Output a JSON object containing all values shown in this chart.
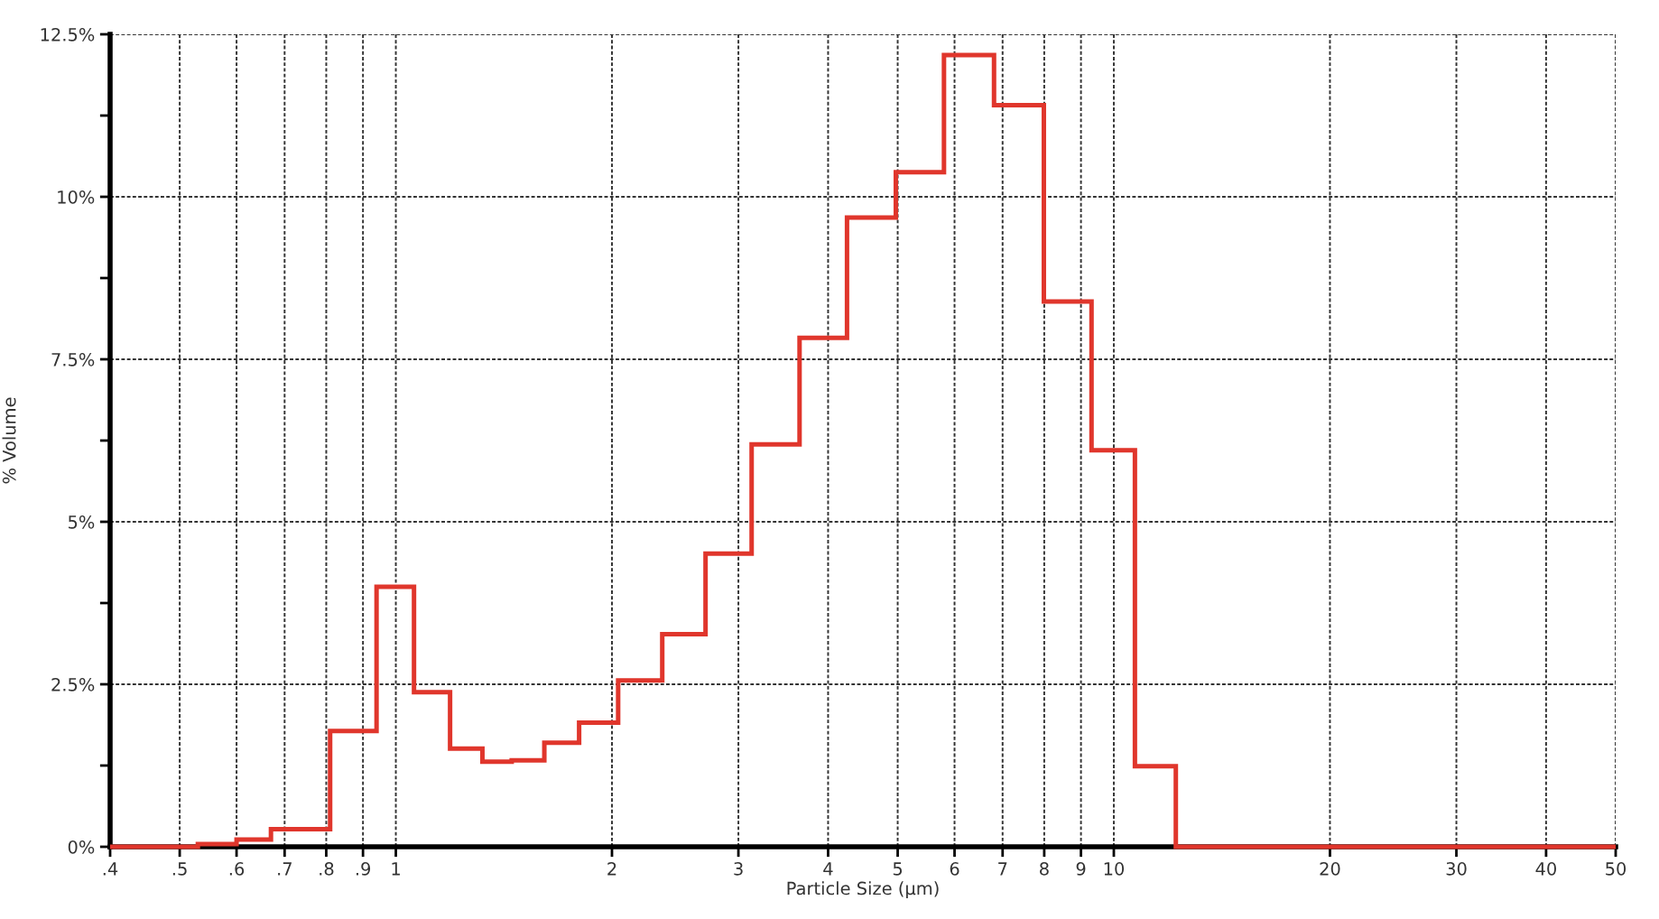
{
  "chart_data": {
    "type": "histogram",
    "xlabel": "Particle Size (µm)",
    "ylabel": "% Volume",
    "bins": [
      0.4,
      0.53,
      0.6,
      0.67,
      0.81,
      0.94,
      1.06,
      1.19,
      1.32,
      1.45,
      1.61,
      1.8,
      2.04,
      2.35,
      2.7,
      3.13,
      3.65,
      4.25,
      4.97,
      5.8,
      6.81,
      7.99,
      9.31,
      10.7,
      12.2,
      50
    ],
    "values": [
      0,
      0.04,
      0.11,
      0.27,
      1.78,
      4.0,
      2.38,
      1.51,
      1.31,
      1.33,
      1.6,
      1.91,
      2.56,
      3.27,
      4.51,
      6.19,
      7.83,
      9.68,
      10.38,
      12.18,
      11.41,
      8.39,
      6.1,
      1.24,
      0
    ],
    "color": "#e0362c",
    "log": "x",
    "grid": true,
    "xlim": [
      0.4,
      50
    ],
    "xticks": [
      {
        "value": 0.4,
        "label": ".4"
      },
      {
        "value": 0.5,
        "label": ".5"
      },
      {
        "value": 0.6,
        "label": ".6"
      },
      {
        "value": 0.7,
        "label": ".7"
      },
      {
        "value": 0.8,
        "label": ".8"
      },
      {
        "value": 0.9,
        "label": ".9"
      },
      1,
      2,
      3,
      4,
      5,
      6,
      7,
      8,
      9,
      10,
      20,
      30,
      40,
      50
    ],
    "ylim": [
      0,
      12.5
    ],
    "yticks": [
      {
        "value": 0,
        "label": "0%"
      },
      {
        "value": 1.25,
        "label": null
      },
      {
        "value": 2.5,
        "label": "2.5%"
      },
      {
        "value": 3.75,
        "label": null
      },
      {
        "value": 5,
        "label": "5%"
      },
      {
        "value": 6.25,
        "label": null
      },
      {
        "value": 7.5,
        "label": "7.5%"
      },
      {
        "value": 8.75,
        "label": null
      },
      {
        "value": 10,
        "label": "10%"
      },
      {
        "value": 11.25,
        "label": null
      },
      {
        "value": 12.5,
        "label": "12.5%"
      }
    ]
  }
}
